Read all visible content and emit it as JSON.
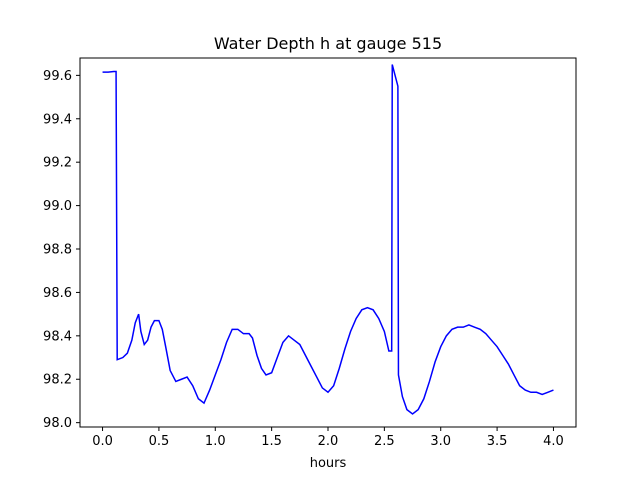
{
  "chart_data": {
    "type": "line",
    "title": "Water Depth h at gauge 515",
    "xlabel": "hours",
    "ylabel": "",
    "xlim": [
      -0.2,
      4.2
    ],
    "ylim": [
      97.98,
      99.68
    ],
    "x_ticks": [
      0.0,
      0.5,
      1.0,
      1.5,
      2.0,
      2.5,
      3.0,
      3.5,
      4.0
    ],
    "x_tick_labels": [
      "0.0",
      "0.5",
      "1.0",
      "1.5",
      "2.0",
      "2.5",
      "3.0",
      "3.5",
      "4.0"
    ],
    "y_ticks": [
      98.0,
      98.2,
      98.4,
      98.6,
      98.8,
      99.0,
      99.2,
      99.4,
      99.6
    ],
    "y_tick_labels": [
      "98.0",
      "98.2",
      "98.4",
      "98.6",
      "98.8",
      "99.0",
      "99.2",
      "99.4",
      "99.6"
    ],
    "grid": false,
    "series": [
      {
        "color": "#0000ff",
        "x": [
          0.0,
          0.05,
          0.1,
          0.12,
          0.13,
          0.18,
          0.22,
          0.26,
          0.29,
          0.32,
          0.34,
          0.37,
          0.4,
          0.43,
          0.46,
          0.5,
          0.53,
          0.56,
          0.6,
          0.65,
          0.7,
          0.75,
          0.8,
          0.85,
          0.9,
          0.95,
          1.0,
          1.05,
          1.1,
          1.15,
          1.2,
          1.25,
          1.3,
          1.33,
          1.37,
          1.41,
          1.45,
          1.5,
          1.55,
          1.6,
          1.65,
          1.7,
          1.75,
          1.8,
          1.85,
          1.9,
          1.95,
          2.0,
          2.05,
          2.1,
          2.15,
          2.2,
          2.25,
          2.3,
          2.35,
          2.4,
          2.45,
          2.5,
          2.54,
          2.565,
          2.57,
          2.62,
          2.625,
          2.66,
          2.7,
          2.75,
          2.8,
          2.85,
          2.9,
          2.95,
          3.0,
          3.05,
          3.1,
          3.15,
          3.2,
          3.25,
          3.3,
          3.35,
          3.4,
          3.45,
          3.5,
          3.55,
          3.6,
          3.65,
          3.7,
          3.75,
          3.8,
          3.85,
          3.9,
          3.95,
          4.0
        ],
        "y": [
          99.615,
          99.615,
          99.618,
          99.618,
          98.29,
          98.3,
          98.32,
          98.38,
          98.46,
          98.5,
          98.42,
          98.36,
          98.38,
          98.44,
          98.47,
          98.47,
          98.43,
          98.35,
          98.24,
          98.19,
          98.2,
          98.21,
          98.17,
          98.11,
          98.09,
          98.15,
          98.22,
          98.29,
          98.37,
          98.43,
          98.43,
          98.41,
          98.41,
          98.39,
          98.31,
          98.25,
          98.22,
          98.23,
          98.3,
          98.37,
          98.4,
          98.38,
          98.36,
          98.31,
          98.26,
          98.21,
          98.16,
          98.14,
          98.17,
          98.25,
          98.34,
          98.42,
          98.48,
          98.52,
          98.53,
          98.52,
          98.48,
          98.42,
          98.33,
          98.33,
          99.65,
          99.55,
          98.22,
          98.12,
          98.06,
          98.04,
          98.06,
          98.11,
          98.19,
          98.28,
          98.35,
          98.4,
          98.43,
          98.44,
          98.44,
          98.45,
          98.44,
          98.43,
          98.41,
          98.38,
          98.35,
          98.31,
          98.27,
          98.22,
          98.17,
          98.15,
          98.14,
          98.14,
          98.13,
          98.14,
          98.15
        ]
      }
    ]
  }
}
